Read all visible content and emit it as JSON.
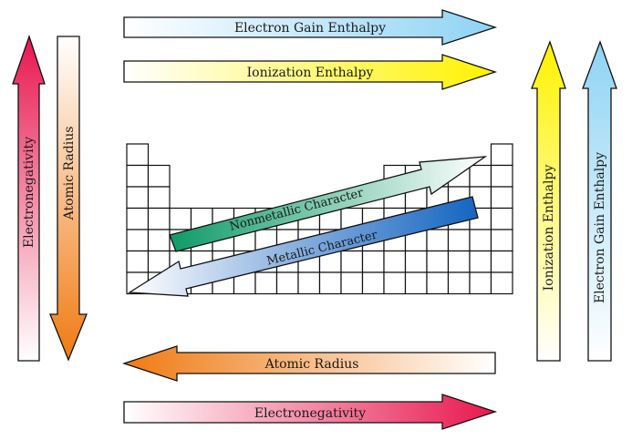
{
  "arrows": {
    "top_electron_gain": "Electron Gain Enthalpy",
    "top_ionization": "Ionization Enthalpy",
    "left_electronegativity": "Electronegativity",
    "left_atomic_radius": "Atomic Radius",
    "right_ionization": "Ionization Enthalpy",
    "right_electron_gain": "Electron Gain Enthalpy",
    "bottom_atomic_radius": "Atomic Radius",
    "bottom_electronegativity": "Electronegativity",
    "nonmetallic": "Nonmetallic Character",
    "metallic": "Metallic Character"
  },
  "colors": {
    "electron_gain": "#8fd3f4",
    "ionization": "#fff200",
    "electronegativity": "#e8174f",
    "atomic_radius": "#f07a12",
    "nonmetallic": "#10a070",
    "metallic": "#1565c0"
  }
}
